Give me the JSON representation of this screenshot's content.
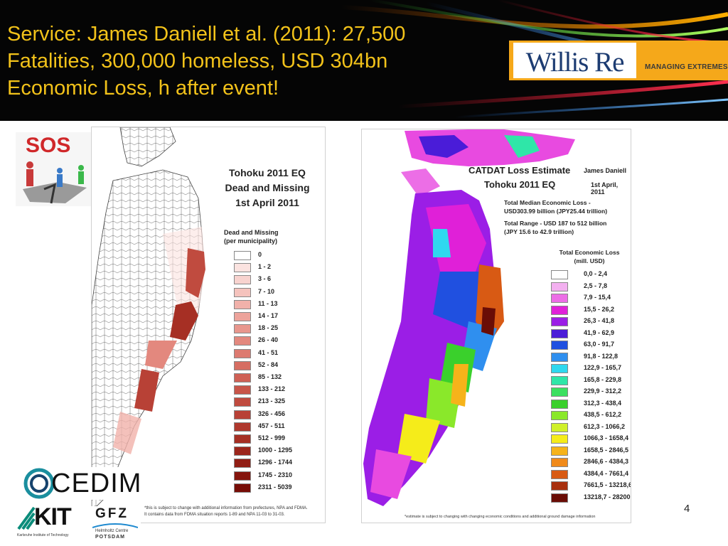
{
  "slide": {
    "title_lines": [
      "Service: James Daniell et al. (2011): 27,500",
      "Fatalities, 300,000 homeless, USD 304bn",
      "Economic Loss, h after event!"
    ],
    "page_number": "4",
    "colors": {
      "title": "#f2c21a",
      "header_bg": "#050505"
    }
  },
  "willis": {
    "name": "Willis Re",
    "tagline": "MANAGING EXTREMES"
  },
  "sos": {
    "label": "SOS"
  },
  "logos": {
    "cedim": "CEDIM",
    "kit": "KIT",
    "kit_sub": "Karlsruhe Institute of Technology",
    "gfz": "GFZ",
    "gfz_sub1": "Helmholtz Centre",
    "gfz_sub2": "POTSDAM"
  },
  "dead_map": {
    "title_lines": [
      "Tohoku 2011 EQ",
      "Dead and Missing",
      "1st April 2011"
    ],
    "legend_title_lines": [
      "Dead and Missing",
      "(per municipality)"
    ],
    "legend": [
      {
        "label": "0",
        "color": "#ffffff"
      },
      {
        "label": "1 - 2",
        "color": "#fbe3e0"
      },
      {
        "label": "3 - 6",
        "color": "#f8d3cf"
      },
      {
        "label": "7 - 10",
        "color": "#f5c3bd"
      },
      {
        "label": "11 - 13",
        "color": "#f1b1aa"
      },
      {
        "label": "14 - 17",
        "color": "#eda39b"
      },
      {
        "label": "18 - 25",
        "color": "#e8968d"
      },
      {
        "label": "26 - 40",
        "color": "#e3887e"
      },
      {
        "label": "41 - 51",
        "color": "#dd7a70"
      },
      {
        "label": "52 - 84",
        "color": "#d66d62"
      },
      {
        "label": "85 - 132",
        "color": "#cf6055"
      },
      {
        "label": "133 - 212",
        "color": "#c85549"
      },
      {
        "label": "213 - 325",
        "color": "#c04b3f"
      },
      {
        "label": "326 - 456",
        "color": "#b84136"
      },
      {
        "label": "457 - 511",
        "color": "#af382d"
      },
      {
        "label": "512 - 999",
        "color": "#a62f24"
      },
      {
        "label": "1000 - 1295",
        "color": "#9c261c"
      },
      {
        "label": "1296 - 1744",
        "color": "#911d14"
      },
      {
        "label": "1745 - 2310",
        "color": "#85150d"
      },
      {
        "label": "2311 - 5039",
        "color": "#770d07"
      }
    ],
    "footnote_lines": [
      "*this is subject to change with additional information from prefectures, NPA and FDMA.",
      "It contains data from FDMA situation reports 1-89 and NPA 11-03 to 31-03."
    ]
  },
  "loss_map": {
    "title_lines": [
      "CATDAT Loss Estimate",
      "Tohoku 2011 EQ"
    ],
    "author": "James Daniell",
    "date": "1st April, 2011",
    "info_lines": [
      "Total Median Economic Loss -",
      "USD303.99 billion (JPY25.44 trillion)",
      "Total Range - USD 187 to 512 billion",
      "(JPY 15.6 to 42.9 trillion)"
    ],
    "legend_title_lines": [
      "Total Economic Loss",
      "(mill. USD)"
    ],
    "legend": [
      {
        "label": "0,0 - 2,4",
        "color": "#ffffff"
      },
      {
        "label": "2,5 - 7,8",
        "color": "#f3b0f0"
      },
      {
        "label": "7,9 - 15,4",
        "color": "#ec6ee6"
      },
      {
        "label": "15,5 - 26,2",
        "color": "#e020d8"
      },
      {
        "label": "26,3 - 41,8",
        "color": "#9b1ee6"
      },
      {
        "label": "41,9 - 62,9",
        "color": "#4a1cd8"
      },
      {
        "label": "63,0 - 91,7",
        "color": "#2050e0"
      },
      {
        "label": "91,8 - 122,8",
        "color": "#2f8fef"
      },
      {
        "label": "122,9 - 165,7",
        "color": "#2fd8ef"
      },
      {
        "label": "165,8 - 229,8",
        "color": "#2fe6a8"
      },
      {
        "label": "229,9 - 312,2",
        "color": "#3be060"
      },
      {
        "label": "312,3 - 438,4",
        "color": "#3ad02c"
      },
      {
        "label": "438,5 - 612,2",
        "color": "#8ae82a"
      },
      {
        "label": "612,3 - 1066,2",
        "color": "#d0f02a"
      },
      {
        "label": "1066,3 - 1658,4",
        "color": "#f5ec1a"
      },
      {
        "label": "1658,5 - 2846,5",
        "color": "#f6b31a"
      },
      {
        "label": "2846,6 - 4384,3",
        "color": "#f08a1a"
      },
      {
        "label": "4384,4 - 7661,4",
        "color": "#d85a14"
      },
      {
        "label": "7661,5 - 13218,6",
        "color": "#a8300e"
      },
      {
        "label": "13218,7 - 28200,0",
        "color": "#6a0d06"
      }
    ],
    "footnote": "*estimate is subject to changing with changing economic conditions and additional ground damage information"
  }
}
